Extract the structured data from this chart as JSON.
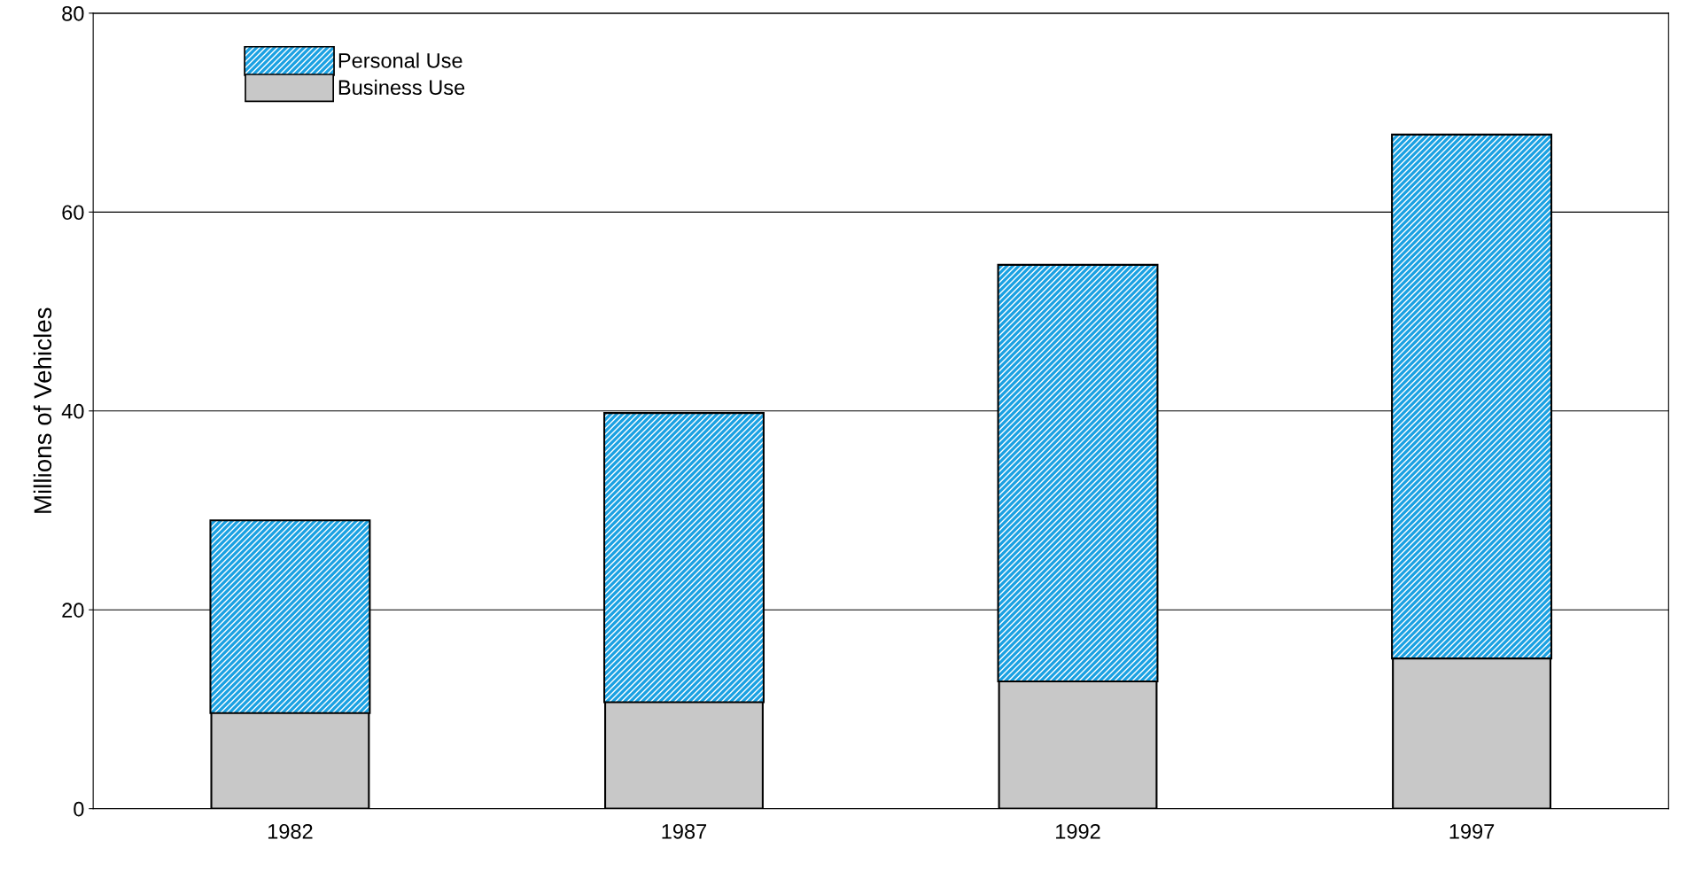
{
  "chart_data": {
    "type": "bar",
    "ylabel": "Millions of Vehicles",
    "categories": [
      "1982",
      "1987",
      "1992",
      "1997"
    ],
    "stacked": true,
    "series": [
      {
        "name": "Business Use",
        "color": "#c8c8c8",
        "values": [
          9.7,
          10.8,
          12.9,
          15.2
        ]
      },
      {
        "name": "Personal Use",
        "color": "#1ba1e2",
        "values": [
          19.2,
          28.9,
          41.7,
          52.5
        ]
      }
    ],
    "ylim": [
      0,
      80
    ],
    "yticks": [
      0,
      20,
      40,
      60,
      80
    ],
    "grid": "y",
    "legend": "top left"
  }
}
